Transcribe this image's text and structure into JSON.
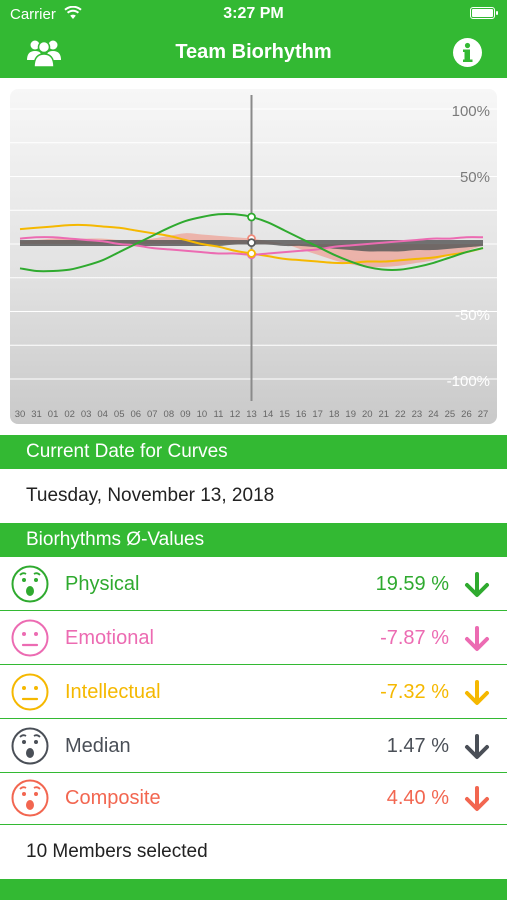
{
  "status_bar": {
    "carrier": "Carrier",
    "time": "3:27 PM"
  },
  "nav": {
    "title": "Team Biorhythm",
    "left_icon": "team-icon",
    "right_icon": "info-icon"
  },
  "chart": {
    "y_labels": [
      "100%",
      "50%",
      "-50%",
      "-100%"
    ],
    "x_ticks": [
      "30",
      "31",
      "01",
      "02",
      "03",
      "04",
      "05",
      "06",
      "07",
      "08",
      "09",
      "10",
      "11",
      "12",
      "13",
      "14",
      "15",
      "16",
      "17",
      "18",
      "19",
      "20",
      "21",
      "22",
      "23",
      "24",
      "25",
      "26",
      "27"
    ],
    "selected_day": "13"
  },
  "chart_data": {
    "type": "line",
    "x": [
      "30",
      "31",
      "01",
      "02",
      "03",
      "04",
      "05",
      "06",
      "07",
      "08",
      "09",
      "10",
      "11",
      "12",
      "13",
      "14",
      "15",
      "16",
      "17",
      "18",
      "19",
      "20",
      "21",
      "22",
      "23",
      "24",
      "25",
      "26",
      "27"
    ],
    "ylim": [
      -100,
      100
    ],
    "series": [
      {
        "key": "physical",
        "color": "#2faa2f",
        "values": [
          -18,
          -20,
          -20,
          -19,
          -16,
          -12,
          -6,
          0,
          6,
          12,
          17,
          20,
          22,
          22,
          20,
          16,
          10,
          4,
          -2,
          -8,
          -13,
          -17,
          -19,
          -19,
          -17,
          -14,
          -10,
          -6,
          -3
        ]
      },
      {
        "key": "emotional",
        "color": "#ec6bb2",
        "values": [
          4,
          5,
          5,
          4,
          3,
          2,
          0,
          -1,
          -3,
          -4,
          -5,
          -6,
          -7,
          -7,
          -8,
          -7,
          -6,
          -5,
          -4,
          -2,
          -1,
          0,
          1,
          2,
          3,
          4,
          4,
          5,
          5
        ]
      },
      {
        "key": "intellectual",
        "color": "#f5b800",
        "values": [
          11,
          12,
          13,
          14,
          14,
          13,
          12,
          10,
          8,
          6,
          3,
          0,
          -2,
          -5,
          -7,
          -9,
          -11,
          -12,
          -13,
          -14,
          -14,
          -13,
          -13,
          -12,
          -11,
          -10,
          -8,
          -6,
          -3
        ]
      },
      {
        "key": "median",
        "color": "#5a5a5a",
        "values": [
          0,
          0,
          0,
          0,
          0,
          0,
          0,
          0,
          0,
          0,
          0,
          0,
          0,
          1,
          1,
          1,
          0,
          0,
          -1,
          -2,
          -3,
          -4,
          -4,
          -4,
          -3,
          -3,
          -2,
          -1,
          0
        ]
      },
      {
        "key": "composite",
        "color": "#f08a7a",
        "values": [
          2,
          3,
          4,
          4,
          4,
          4,
          3,
          3,
          4,
          6,
          8,
          7,
          6,
          5,
          4,
          2,
          0,
          -4,
          -8,
          -12,
          -15,
          -17,
          -17,
          -16,
          -14,
          -12,
          -8,
          -5,
          -1
        ]
      }
    ]
  },
  "sections": {
    "current_date_header": "Current Date for Curves",
    "values_header": "Biorhythms Ø-Values"
  },
  "current_date": "Tuesday, November 13, 2018",
  "biorhythms": [
    {
      "key": "physical",
      "label": "Physical",
      "value": "19.59 %",
      "color": "#2faa2f",
      "face": "surprised",
      "trend": "down"
    },
    {
      "key": "emotional",
      "label": "Emotional",
      "value": "-7.87 %",
      "color": "#ec6bb2",
      "face": "neutral",
      "trend": "down"
    },
    {
      "key": "intellectual",
      "label": "Intellectual",
      "value": "-7.32 %",
      "color": "#f5b800",
      "face": "neutral",
      "trend": "down"
    },
    {
      "key": "median",
      "label": "Median",
      "value": "1.47 %",
      "color": "#4a4f57",
      "face": "surprised",
      "trend": "down"
    },
    {
      "key": "composite",
      "label": "Composite",
      "value": "4.40 %",
      "color": "#f26650",
      "face": "surprised",
      "trend": "down"
    }
  ],
  "members_selected": "10 Members selected"
}
